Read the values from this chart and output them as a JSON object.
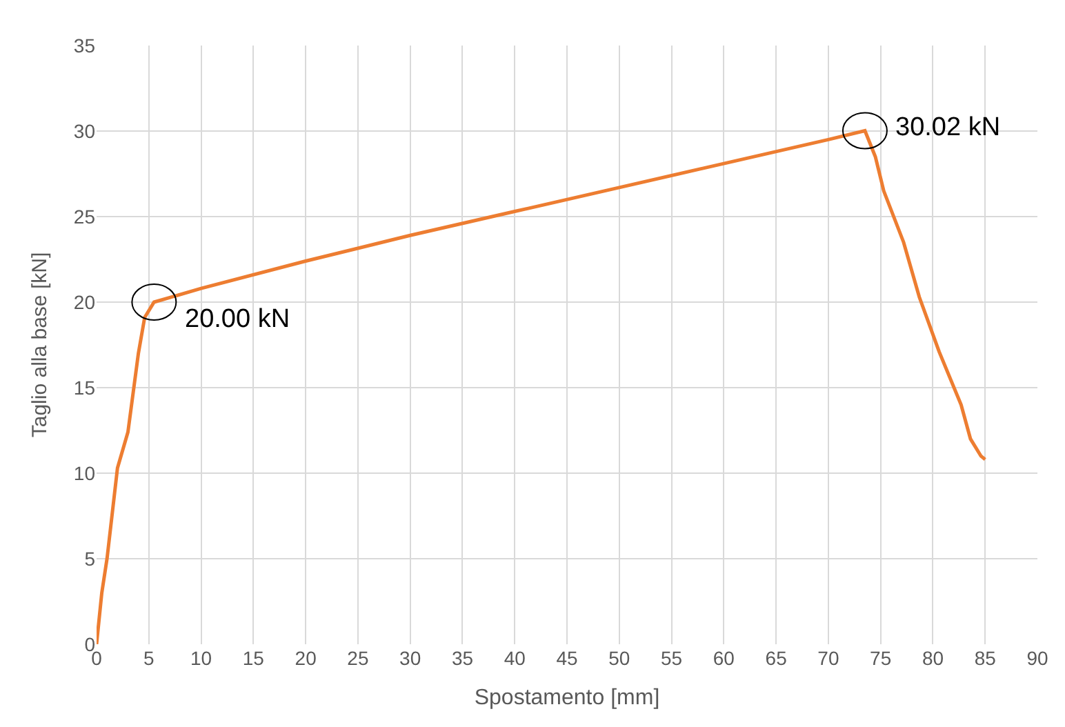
{
  "chart_data": {
    "type": "line",
    "xlabel": "Spostamento [mm]",
    "ylabel": "Taglio alla base [kN]",
    "x": [
      0,
      0.5,
      1,
      2,
      3,
      4,
      4.6,
      5.5,
      10,
      20,
      30,
      40,
      50,
      60,
      70,
      73.5,
      74.5,
      75.3,
      77.2,
      78.7,
      80.6,
      82.7,
      83.6,
      84.6,
      85
    ],
    "series": [
      {
        "color": "#ed7d31",
        "values": [
          0,
          3,
          5,
          10.3,
          12.4,
          17,
          19.1,
          20,
          20.8,
          22.4,
          23.9,
          25.3,
          26.7,
          28.1,
          29.5,
          30.02,
          28.5,
          26.5,
          23.5,
          20.3,
          17.1,
          14,
          12,
          11,
          10.8
        ]
      }
    ],
    "annotations": [
      {
        "text": "20.00 kN",
        "x": 5.5,
        "y": 20
      },
      {
        "text": "30.02 kN",
        "x": 73.5,
        "y": 30.02
      }
    ],
    "xlim": [
      0,
      90
    ],
    "xticks": [
      0,
      5,
      10,
      15,
      20,
      25,
      30,
      35,
      40,
      45,
      50,
      55,
      60,
      65,
      70,
      75,
      80,
      85,
      90
    ],
    "ylim": [
      0,
      35
    ],
    "yticks": [
      0,
      5,
      10,
      15,
      20,
      25,
      30,
      35
    ],
    "grid": true,
    "marker": "none",
    "line_style": "solid"
  }
}
